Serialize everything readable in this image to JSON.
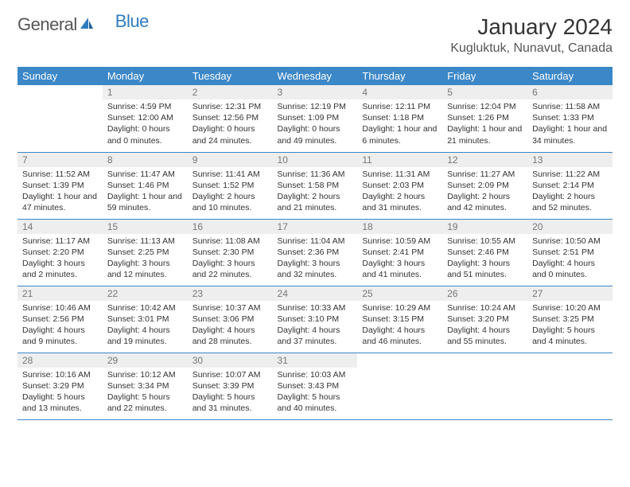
{
  "brand": {
    "part1": "General",
    "part2": "Blue"
  },
  "title": "January 2024",
  "location": "Kugluktuk, Nunavut, Canada",
  "colors": {
    "header_bg": "#3b87c8",
    "header_fg": "#ffffff",
    "daynum_bg": "#eeeeee",
    "daynum_fg": "#777777",
    "rule": "#3b87c8",
    "brand_blue": "#2e7cc0"
  },
  "weekdays": [
    "Sunday",
    "Monday",
    "Tuesday",
    "Wednesday",
    "Thursday",
    "Friday",
    "Saturday"
  ],
  "weeks": [
    [
      null,
      {
        "n": "1",
        "sr": "Sunrise: 4:59 PM",
        "ss": "Sunset: 12:00 AM",
        "dl": "Daylight: 0 hours and 0 minutes."
      },
      {
        "n": "2",
        "sr": "Sunrise: 12:31 PM",
        "ss": "Sunset: 12:56 PM",
        "dl": "Daylight: 0 hours and 24 minutes."
      },
      {
        "n": "3",
        "sr": "Sunrise: 12:19 PM",
        "ss": "Sunset: 1:09 PM",
        "dl": "Daylight: 0 hours and 49 minutes."
      },
      {
        "n": "4",
        "sr": "Sunrise: 12:11 PM",
        "ss": "Sunset: 1:18 PM",
        "dl": "Daylight: 1 hour and 6 minutes."
      },
      {
        "n": "5",
        "sr": "Sunrise: 12:04 PM",
        "ss": "Sunset: 1:26 PM",
        "dl": "Daylight: 1 hour and 21 minutes."
      },
      {
        "n": "6",
        "sr": "Sunrise: 11:58 AM",
        "ss": "Sunset: 1:33 PM",
        "dl": "Daylight: 1 hour and 34 minutes."
      }
    ],
    [
      {
        "n": "7",
        "sr": "Sunrise: 11:52 AM",
        "ss": "Sunset: 1:39 PM",
        "dl": "Daylight: 1 hour and 47 minutes."
      },
      {
        "n": "8",
        "sr": "Sunrise: 11:47 AM",
        "ss": "Sunset: 1:46 PM",
        "dl": "Daylight: 1 hour and 59 minutes."
      },
      {
        "n": "9",
        "sr": "Sunrise: 11:41 AM",
        "ss": "Sunset: 1:52 PM",
        "dl": "Daylight: 2 hours and 10 minutes."
      },
      {
        "n": "10",
        "sr": "Sunrise: 11:36 AM",
        "ss": "Sunset: 1:58 PM",
        "dl": "Daylight: 2 hours and 21 minutes."
      },
      {
        "n": "11",
        "sr": "Sunrise: 11:31 AM",
        "ss": "Sunset: 2:03 PM",
        "dl": "Daylight: 2 hours and 31 minutes."
      },
      {
        "n": "12",
        "sr": "Sunrise: 11:27 AM",
        "ss": "Sunset: 2:09 PM",
        "dl": "Daylight: 2 hours and 42 minutes."
      },
      {
        "n": "13",
        "sr": "Sunrise: 11:22 AM",
        "ss": "Sunset: 2:14 PM",
        "dl": "Daylight: 2 hours and 52 minutes."
      }
    ],
    [
      {
        "n": "14",
        "sr": "Sunrise: 11:17 AM",
        "ss": "Sunset: 2:20 PM",
        "dl": "Daylight: 3 hours and 2 minutes."
      },
      {
        "n": "15",
        "sr": "Sunrise: 11:13 AM",
        "ss": "Sunset: 2:25 PM",
        "dl": "Daylight: 3 hours and 12 minutes."
      },
      {
        "n": "16",
        "sr": "Sunrise: 11:08 AM",
        "ss": "Sunset: 2:30 PM",
        "dl": "Daylight: 3 hours and 22 minutes."
      },
      {
        "n": "17",
        "sr": "Sunrise: 11:04 AM",
        "ss": "Sunset: 2:36 PM",
        "dl": "Daylight: 3 hours and 32 minutes."
      },
      {
        "n": "18",
        "sr": "Sunrise: 10:59 AM",
        "ss": "Sunset: 2:41 PM",
        "dl": "Daylight: 3 hours and 41 minutes."
      },
      {
        "n": "19",
        "sr": "Sunrise: 10:55 AM",
        "ss": "Sunset: 2:46 PM",
        "dl": "Daylight: 3 hours and 51 minutes."
      },
      {
        "n": "20",
        "sr": "Sunrise: 10:50 AM",
        "ss": "Sunset: 2:51 PM",
        "dl": "Daylight: 4 hours and 0 minutes."
      }
    ],
    [
      {
        "n": "21",
        "sr": "Sunrise: 10:46 AM",
        "ss": "Sunset: 2:56 PM",
        "dl": "Daylight: 4 hours and 9 minutes."
      },
      {
        "n": "22",
        "sr": "Sunrise: 10:42 AM",
        "ss": "Sunset: 3:01 PM",
        "dl": "Daylight: 4 hours and 19 minutes."
      },
      {
        "n": "23",
        "sr": "Sunrise: 10:37 AM",
        "ss": "Sunset: 3:06 PM",
        "dl": "Daylight: 4 hours and 28 minutes."
      },
      {
        "n": "24",
        "sr": "Sunrise: 10:33 AM",
        "ss": "Sunset: 3:10 PM",
        "dl": "Daylight: 4 hours and 37 minutes."
      },
      {
        "n": "25",
        "sr": "Sunrise: 10:29 AM",
        "ss": "Sunset: 3:15 PM",
        "dl": "Daylight: 4 hours and 46 minutes."
      },
      {
        "n": "26",
        "sr": "Sunrise: 10:24 AM",
        "ss": "Sunset: 3:20 PM",
        "dl": "Daylight: 4 hours and 55 minutes."
      },
      {
        "n": "27",
        "sr": "Sunrise: 10:20 AM",
        "ss": "Sunset: 3:25 PM",
        "dl": "Daylight: 5 hours and 4 minutes."
      }
    ],
    [
      {
        "n": "28",
        "sr": "Sunrise: 10:16 AM",
        "ss": "Sunset: 3:29 PM",
        "dl": "Daylight: 5 hours and 13 minutes."
      },
      {
        "n": "29",
        "sr": "Sunrise: 10:12 AM",
        "ss": "Sunset: 3:34 PM",
        "dl": "Daylight: 5 hours and 22 minutes."
      },
      {
        "n": "30",
        "sr": "Sunrise: 10:07 AM",
        "ss": "Sunset: 3:39 PM",
        "dl": "Daylight: 5 hours and 31 minutes."
      },
      {
        "n": "31",
        "sr": "Sunrise: 10:03 AM",
        "ss": "Sunset: 3:43 PM",
        "dl": "Daylight: 5 hours and 40 minutes."
      },
      null,
      null,
      null
    ]
  ]
}
